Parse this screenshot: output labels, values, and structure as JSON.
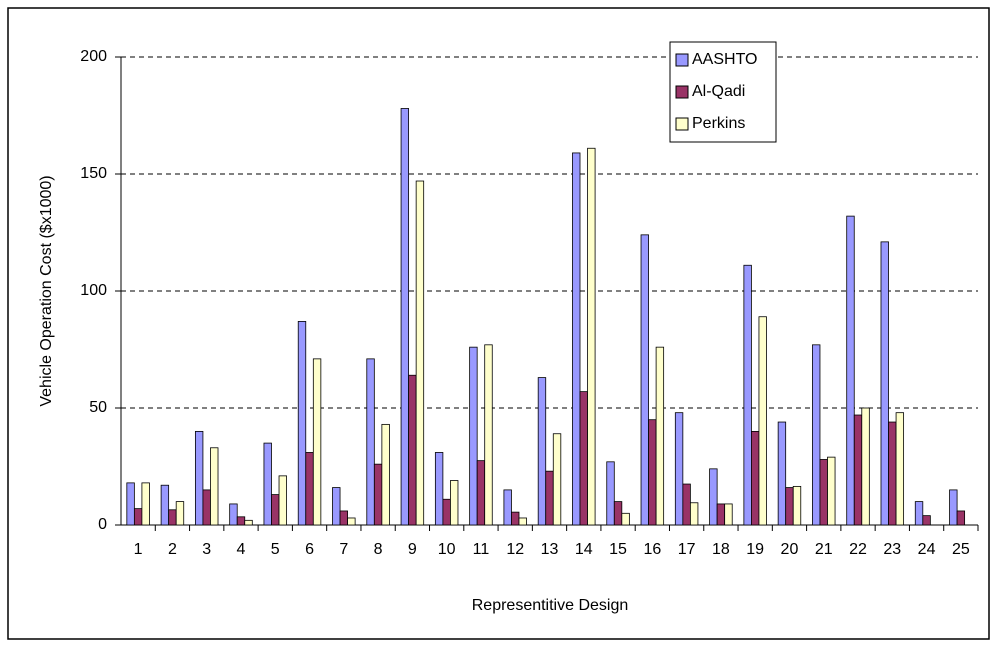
{
  "chart_data": {
    "type": "bar",
    "x_label": "Representitive Design",
    "y_label": "Vehicle Operation Cost ($x1000)",
    "categories": [
      "1",
      "2",
      "3",
      "4",
      "5",
      "6",
      "7",
      "8",
      "9",
      "10",
      "11",
      "12",
      "13",
      "14",
      "15",
      "16",
      "17",
      "18",
      "19",
      "20",
      "21",
      "22",
      "23",
      "24",
      "25"
    ],
    "series": [
      {
        "name": "AASHTO",
        "color": "#9999ff",
        "values": [
          18,
          17,
          40,
          9,
          35,
          87,
          16,
          71,
          178,
          31,
          76,
          15,
          63,
          159,
          27,
          124,
          48,
          24,
          111,
          44,
          77,
          132,
          121,
          10,
          15
        ]
      },
      {
        "name": "Al-Qadi",
        "color": "#993366",
        "values": [
          7,
          6.5,
          15,
          3.5,
          13,
          31,
          6,
          26,
          64,
          11,
          27.5,
          5.5,
          23,
          57,
          10,
          45,
          17.5,
          9,
          40,
          16,
          28,
          47,
          44,
          4,
          6
        ]
      },
      {
        "name": "Perkins",
        "color": "#ffffcc",
        "values": [
          18,
          10,
          33,
          2,
          21,
          71,
          3,
          43,
          147,
          19,
          77,
          3,
          39,
          161,
          5,
          76,
          9.5,
          9,
          89,
          16.5,
          29,
          50,
          48,
          null,
          null
        ]
      }
    ],
    "ylim": [
      0,
      200
    ],
    "yticks": [
      0,
      50,
      100,
      150,
      200
    ],
    "grid": true,
    "legend": "top-right"
  }
}
